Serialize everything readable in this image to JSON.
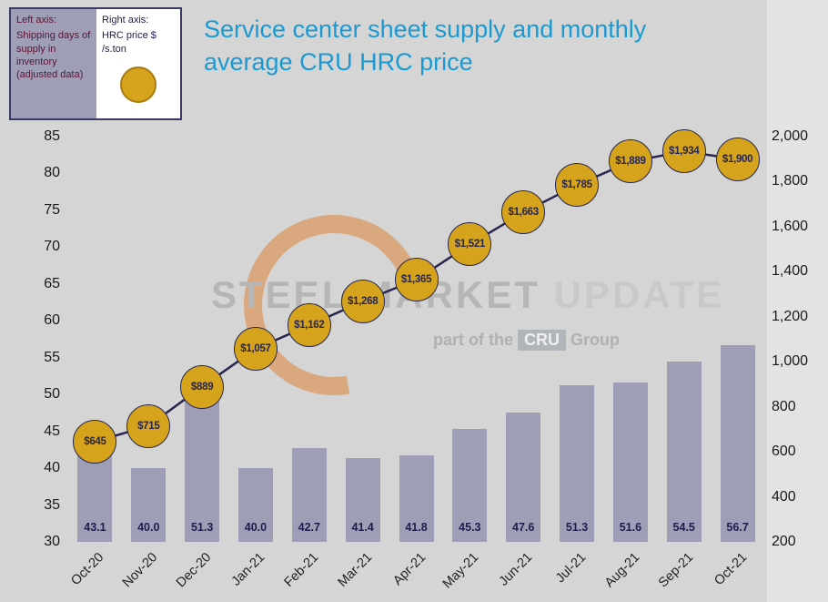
{
  "title": "Service center sheet supply and monthly\naverage CRU HRC price",
  "legend": {
    "left_title": "Left axis:",
    "left_body": "Shipping days of supply in inventory (adjusted data)",
    "right_title": "Right axis:",
    "right_body": "HRC price $ /s.ton"
  },
  "watermark": {
    "part1": "STEEL MARKET",
    "part2": " UPDATE",
    "sub_prefix": "part of the",
    "badge": "CRU",
    "sub_suffix": "Group"
  },
  "chart_data": {
    "type": "bar",
    "subtype": "combo-bar-line",
    "title": "Service center sheet supply and monthly average CRU HRC price",
    "categories": [
      "Oct-20",
      "Nov-20",
      "Dec-20",
      "Jan-21",
      "Feb-21",
      "Mar-21",
      "Apr-21",
      "May-21",
      "Jun-21",
      "Jul-21",
      "Aug-21",
      "Sep-21",
      "Oct-21"
    ],
    "series": [
      {
        "name": "Shipping days of supply in inventory (adjusted data)",
        "type": "bar",
        "axis": "left",
        "values": [
          43.1,
          40.0,
          51.3,
          40.0,
          42.7,
          41.4,
          41.8,
          45.3,
          47.6,
          51.3,
          51.6,
          54.5,
          56.7
        ]
      },
      {
        "name": "HRC price $ /s.ton",
        "type": "line",
        "axis": "right",
        "values": [
          645,
          715,
          889,
          1057,
          1162,
          1268,
          1365,
          1521,
          1663,
          1785,
          1889,
          1934,
          1900
        ],
        "labels": [
          "$645",
          "$715",
          "$889",
          "$1,057",
          "$1,162",
          "$1,268",
          "$1,365",
          "$1,521",
          "$1,663",
          "$1,785",
          "$1,889",
          "$1,934",
          "$1,900"
        ]
      }
    ],
    "bar_labels": [
      "43.1",
      "40.0",
      "51.3",
      "40.0",
      "42.7",
      "41.4",
      "41.8",
      "45.3",
      "47.6",
      "51.3",
      "51.6",
      "54.5",
      "56.7"
    ],
    "left_axis": {
      "min": 30,
      "max": 85,
      "step": 5,
      "ticks": [
        "85",
        "80",
        "75",
        "70",
        "65",
        "60",
        "55",
        "50",
        "45",
        "40",
        "35",
        "30"
      ]
    },
    "right_axis": {
      "min": 200,
      "max": 2000,
      "step": 200,
      "ticks": [
        "2,000",
        "1,800",
        "1,600",
        "1,400",
        "1,200",
        "1,000",
        "800",
        "600",
        "400",
        "200"
      ]
    },
    "grid": false,
    "legend_position": "top-left",
    "colors": {
      "bar": "#9e9eb6",
      "marker": "#d6a31c",
      "marker_border": "#26264e",
      "line": "#26264e",
      "title": "#1b9ad2",
      "background": "#d5d5d5"
    }
  }
}
